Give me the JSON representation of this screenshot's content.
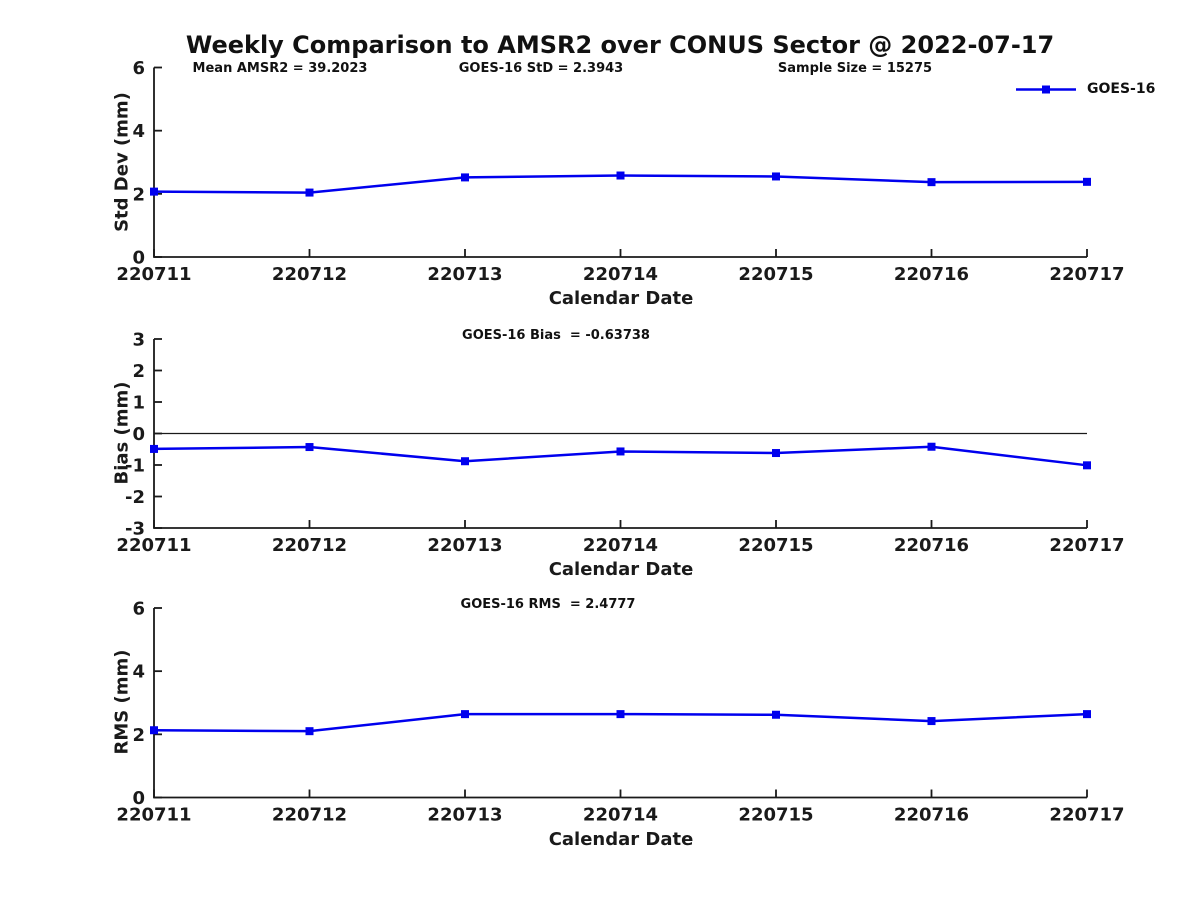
{
  "title": "Weekly Comparison to AMSR2 over CONUS Sector @ 2022-07-17",
  "legend": {
    "label": "GOES-16"
  },
  "colors": {
    "series": "#0000ee",
    "axis": "#1a1a1a",
    "text": "#1a1a1a"
  },
  "chart_data": [
    {
      "type": "line",
      "name": "stddev",
      "ylabel": "Std Dev (mm)",
      "xlabel": "Calendar Date",
      "categories": [
        "220711",
        "220712",
        "220713",
        "220714",
        "220715",
        "220716",
        "220717"
      ],
      "series": [
        {
          "name": "GOES-16",
          "values": [
            2.07,
            2.04,
            2.52,
            2.58,
            2.55,
            2.37,
            2.38
          ]
        }
      ],
      "ylim": [
        0,
        6
      ],
      "yticks": [
        0,
        2,
        4,
        6
      ],
      "grid": false,
      "zero_line": false,
      "legend_position": "top-right",
      "annotations": [
        "Mean AMSR2 = 39.2023",
        "GOES-16 StD = 2.3943",
        "Sample Size = 15275"
      ]
    },
    {
      "type": "line",
      "name": "bias",
      "ylabel": "Bias (mm)",
      "xlabel": "Calendar Date",
      "categories": [
        "220711",
        "220712",
        "220713",
        "220714",
        "220715",
        "220716",
        "220717"
      ],
      "series": [
        {
          "name": "GOES-16",
          "values": [
            -0.49,
            -0.43,
            -0.88,
            -0.57,
            -0.62,
            -0.42,
            -1.01
          ]
        }
      ],
      "ylim": [
        -3,
        3
      ],
      "yticks": [
        -3,
        -2,
        -1,
        0,
        1,
        2,
        3
      ],
      "grid": false,
      "zero_line": true,
      "annotations": [
        "GOES-16 Bias  = -0.63738"
      ]
    },
    {
      "type": "line",
      "name": "rms",
      "ylabel": "RMS (mm)",
      "xlabel": "Calendar Date",
      "categories": [
        "220711",
        "220712",
        "220713",
        "220714",
        "220715",
        "220716",
        "220717"
      ],
      "series": [
        {
          "name": "GOES-16",
          "values": [
            2.13,
            2.1,
            2.64,
            2.64,
            2.62,
            2.42,
            2.64
          ]
        }
      ],
      "ylim": [
        0,
        6
      ],
      "yticks": [
        0,
        2,
        4,
        6
      ],
      "grid": false,
      "zero_line": false,
      "annotations": [
        "GOES-16 RMS  = 2.4777"
      ]
    }
  ]
}
